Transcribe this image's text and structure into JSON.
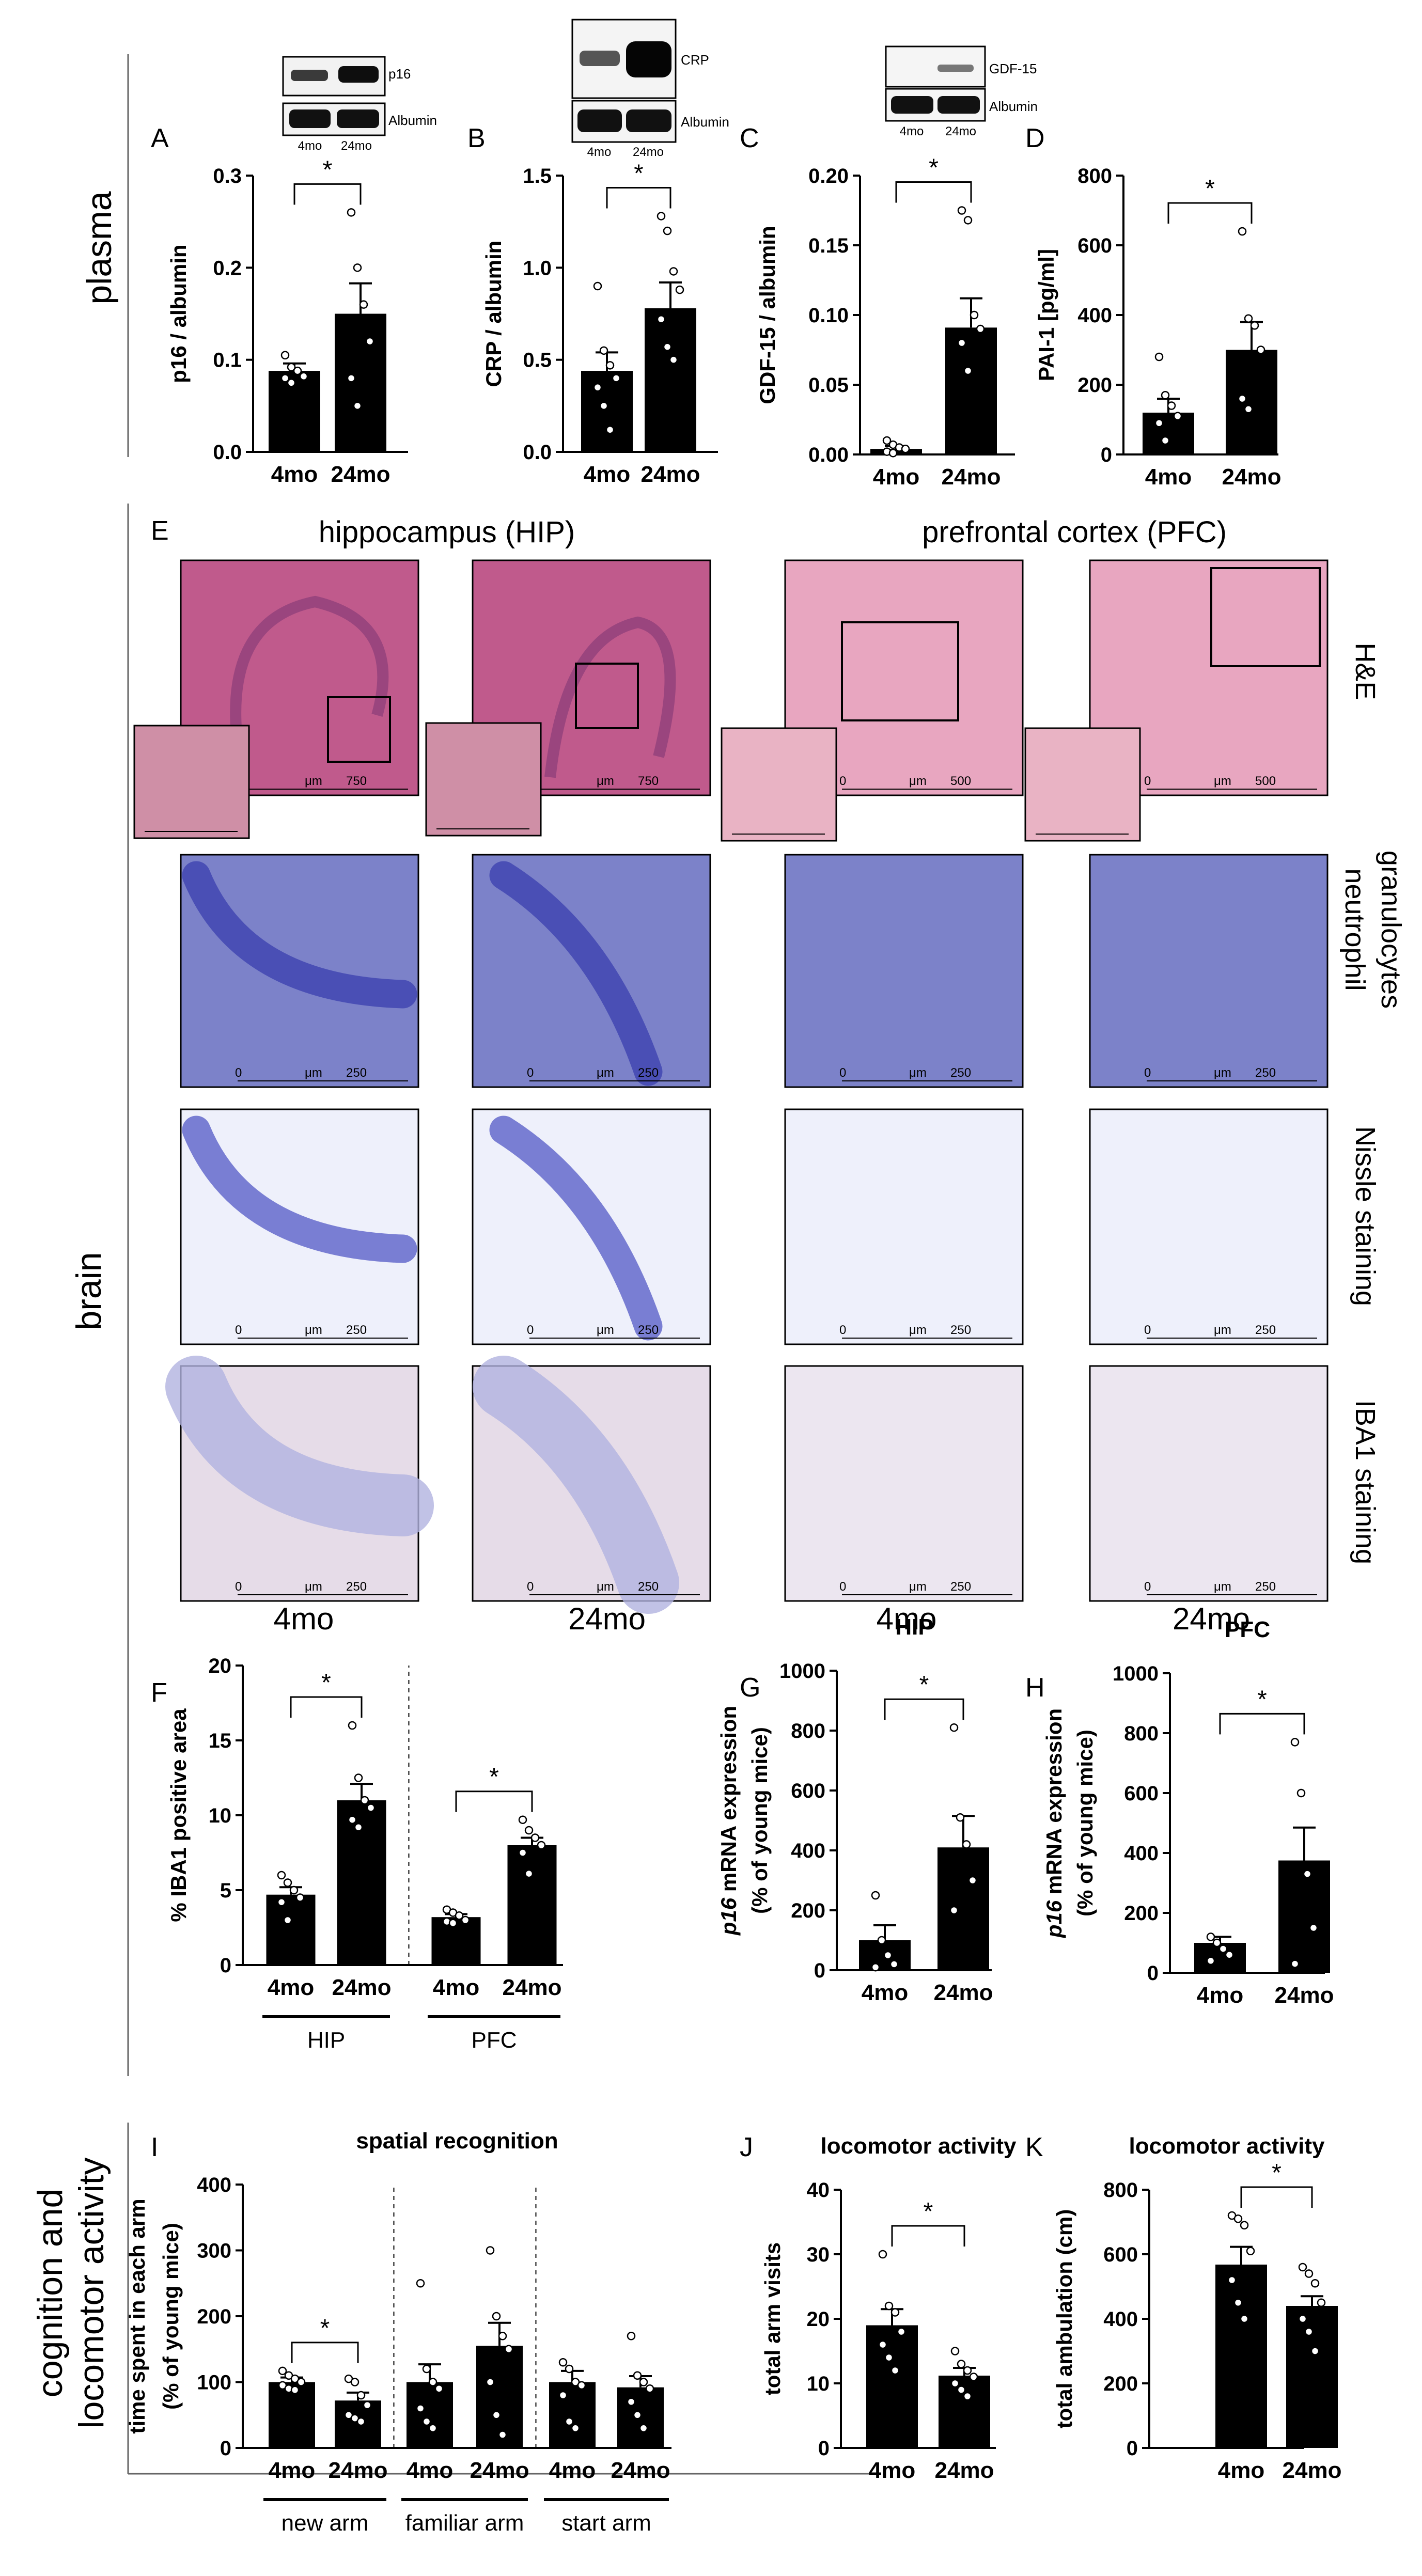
{
  "sections": {
    "plasma": "plasma",
    "brain": "brain",
    "cognition_line1": "cognition and",
    "cognition_line2": "locomotor activity"
  },
  "panel_letters": [
    "A",
    "B",
    "C",
    "D",
    "E",
    "F",
    "G",
    "H",
    "I",
    "J",
    "K"
  ],
  "blots": [
    {
      "band": "p16",
      "loading": "Albumin",
      "lane1": "4mo",
      "lane2": "24mo"
    },
    {
      "band": "CRP",
      "loading": "Albumin",
      "lane1": "4mo",
      "lane2": "24mo"
    },
    {
      "band": "GDF-15",
      "loading": "Albumin",
      "lane1": "4mo",
      "lane2": "24mo"
    }
  ],
  "histology": {
    "region_hip": "hippocampus (HIP)",
    "region_pfc": "prefrontal cortex (PFC)",
    "rows": [
      "H&E",
      "neutrophil granulocytes",
      "Nissle staining",
      "IBA1 staining"
    ],
    "columns": [
      "4mo",
      "24mo",
      "4mo",
      "24mo"
    ],
    "scale_unit": "μm",
    "scale_zero": "0",
    "scale_he_hip": "750",
    "scale_he_pfc": "500",
    "scale_other": "250",
    "tint_colors": {
      "he_hip": "#c05a8c",
      "he_pfc": "#e8a6c0",
      "neutrophil": "#7c82c9",
      "nissl": "#eef0fb",
      "iba1_hip": "#e6dce8",
      "iba1_pfc": "#ece6f0"
    }
  },
  "chart_data": [
    {
      "id": "A",
      "type": "bar",
      "categories": [
        "4mo",
        "24mo"
      ],
      "values": [
        0.088,
        0.15
      ],
      "errors": [
        0.008,
        0.033
      ],
      "points": [
        [
          0.105,
          0.092,
          0.088,
          0.082,
          0.08,
          0.075
        ],
        [
          0.26,
          0.2,
          0.16,
          0.12,
          0.08,
          0.05
        ]
      ],
      "ylabel": "p16 / albumin",
      "ylim": [
        0,
        0.3
      ],
      "yticks": [
        "0.0",
        "0.1",
        "0.2",
        "0.3"
      ],
      "significance": "*"
    },
    {
      "id": "B",
      "type": "bar",
      "categories": [
        "4mo",
        "24mo"
      ],
      "values": [
        0.44,
        0.78
      ],
      "errors": [
        0.1,
        0.14
      ],
      "points": [
        [
          0.9,
          0.55,
          0.47,
          0.4,
          0.35,
          0.25,
          0.12
        ],
        [
          1.28,
          1.2,
          0.98,
          0.88,
          0.72,
          0.57,
          0.5
        ]
      ],
      "ylabel": "CRP / albumin",
      "ylim": [
        0,
        1.5
      ],
      "yticks": [
        "0.0",
        "0.5",
        "1.0",
        "1.5"
      ],
      "significance": "*"
    },
    {
      "id": "C",
      "type": "bar",
      "categories": [
        "4mo",
        "24mo"
      ],
      "values": [
        0.004,
        0.091
      ],
      "errors": [
        0.002,
        0.021
      ],
      "points": [
        [
          0.01,
          0.007,
          0.005,
          0.004,
          0.002,
          0.001
        ],
        [
          0.175,
          0.168,
          0.1,
          0.09,
          0.08,
          0.06
        ]
      ],
      "ylabel": "GDF-15 / albumin",
      "ylim": [
        0,
        0.2
      ],
      "yticks": [
        "0.00",
        "0.05",
        "0.10",
        "0.15",
        "0.20"
      ],
      "significance": "*"
    },
    {
      "id": "D",
      "type": "bar",
      "categories": [
        "4mo",
        "24mo"
      ],
      "values": [
        120,
        300
      ],
      "errors": [
        40,
        80
      ],
      "points": [
        [
          280,
          170,
          140,
          110,
          90,
          40
        ],
        [
          640,
          390,
          370,
          300,
          160,
          130
        ]
      ],
      "ylabel": "PAI-1 [pg/ml]",
      "ylim": [
        0,
        800
      ],
      "yticks": [
        "0",
        "200",
        "400",
        "600",
        "800"
      ],
      "significance": "*"
    },
    {
      "id": "F",
      "type": "bar",
      "categories": [
        "4mo",
        "24mo",
        "4mo",
        "24mo"
      ],
      "values": [
        4.7,
        11.0,
        3.2,
        8.0
      ],
      "errors": [
        0.5,
        1.1,
        0.2,
        0.5
      ],
      "points": [
        [
          6.0,
          5.5,
          5.0,
          4.5,
          4.2,
          3.0
        ],
        [
          16.0,
          12.5,
          11.0,
          10.5,
          9.7,
          9.2
        ],
        [
          3.7,
          3.5,
          3.3,
          3.0,
          2.9,
          2.8
        ],
        [
          9.7,
          9.0,
          8.5,
          8.0,
          7.5,
          6.1
        ]
      ],
      "ylabel": "% IBA1 positive area",
      "ylim": [
        0,
        20
      ],
      "yticks": [
        "0",
        "5",
        "10",
        "15",
        "20"
      ],
      "groups": [
        "HIP",
        "PFC"
      ],
      "significance": [
        "*",
        "*"
      ]
    },
    {
      "id": "G",
      "type": "bar",
      "title": "HIP",
      "categories": [
        "4mo",
        "24mo"
      ],
      "values": [
        100,
        410
      ],
      "errors": [
        50,
        105
      ],
      "points": [
        [
          250,
          100,
          50,
          20,
          10
        ],
        [
          810,
          510,
          420,
          300,
          200
        ]
      ],
      "ylabel_italic": "p16",
      "ylabel_rest": " mRNA expression",
      "ylabel2": "(% of young mice)",
      "ylim": [
        0,
        1000
      ],
      "yticks": [
        "0",
        "200",
        "400",
        "600",
        "800",
        "1000"
      ],
      "significance": "*"
    },
    {
      "id": "H",
      "type": "bar",
      "title": "PFC",
      "categories": [
        "4mo",
        "24mo"
      ],
      "values": [
        100,
        375
      ],
      "errors": [
        20,
        110
      ],
      "points": [
        [
          120,
          100,
          80,
          60,
          40
        ],
        [
          770,
          600,
          330,
          150,
          30
        ]
      ],
      "ylabel_italic": "p16",
      "ylabel_rest": " mRNA expression",
      "ylabel2": "(% of young mice)",
      "ylim": [
        0,
        1000
      ],
      "yticks": [
        "0",
        "200",
        "400",
        "600",
        "800",
        "1000"
      ],
      "significance": "*"
    },
    {
      "id": "I",
      "type": "bar",
      "title": "spatial recognition",
      "categories": [
        "4mo",
        "24mo",
        "4mo",
        "24mo",
        "4mo",
        "24mo"
      ],
      "values": [
        100,
        72,
        100,
        155,
        100,
        92
      ],
      "errors": [
        7,
        12,
        27,
        35,
        17,
        17
      ],
      "points": [
        [
          117,
          110,
          105,
          100,
          95,
          90,
          88
        ],
        [
          105,
          100,
          80,
          65,
          50,
          45,
          40
        ],
        [
          250,
          120,
          100,
          90,
          60,
          40,
          30
        ],
        [
          300,
          200,
          170,
          150,
          100,
          50,
          20
        ],
        [
          130,
          120,
          100,
          95,
          80,
          40,
          30
        ],
        [
          170,
          110,
          100,
          90,
          70,
          50,
          30
        ]
      ],
      "ylabel": "time spent in each arm",
      "ylabel2": "(% of young mice)",
      "ylim": [
        0,
        400
      ],
      "yticks": [
        "0",
        "100",
        "200",
        "300",
        "400"
      ],
      "groups": [
        "new arm",
        "familiar arm",
        "start arm"
      ],
      "significance": "*"
    },
    {
      "id": "J",
      "type": "bar",
      "title": "locomotor activity",
      "categories": [
        "4mo",
        "24mo"
      ],
      "values": [
        19,
        11.2
      ],
      "errors": [
        2.5,
        1.2
      ],
      "points": [
        [
          30,
          22,
          21,
          18,
          16,
          14,
          12
        ],
        [
          15,
          13,
          12,
          11,
          10,
          9,
          8
        ]
      ],
      "ylabel": "total arm visits",
      "ylim": [
        0,
        40
      ],
      "yticks": [
        "0",
        "10",
        "20",
        "30",
        "40"
      ],
      "significance": "*"
    },
    {
      "id": "K",
      "type": "bar",
      "title": "locomotor activity",
      "categories": [
        "4mo",
        "24mo"
      ],
      "values": [
        568,
        440
      ],
      "errors": [
        55,
        30
      ],
      "points": [
        [
          720,
          710,
          690,
          610,
          520,
          450,
          400
        ],
        [
          560,
          540,
          510,
          450,
          400,
          360,
          300
        ]
      ],
      "ylabel": "total ambulation (cm)",
      "ylim": [
        0,
        800
      ],
      "yticks": [
        "0",
        "200",
        "400",
        "600",
        "800"
      ],
      "significance": "*"
    }
  ]
}
